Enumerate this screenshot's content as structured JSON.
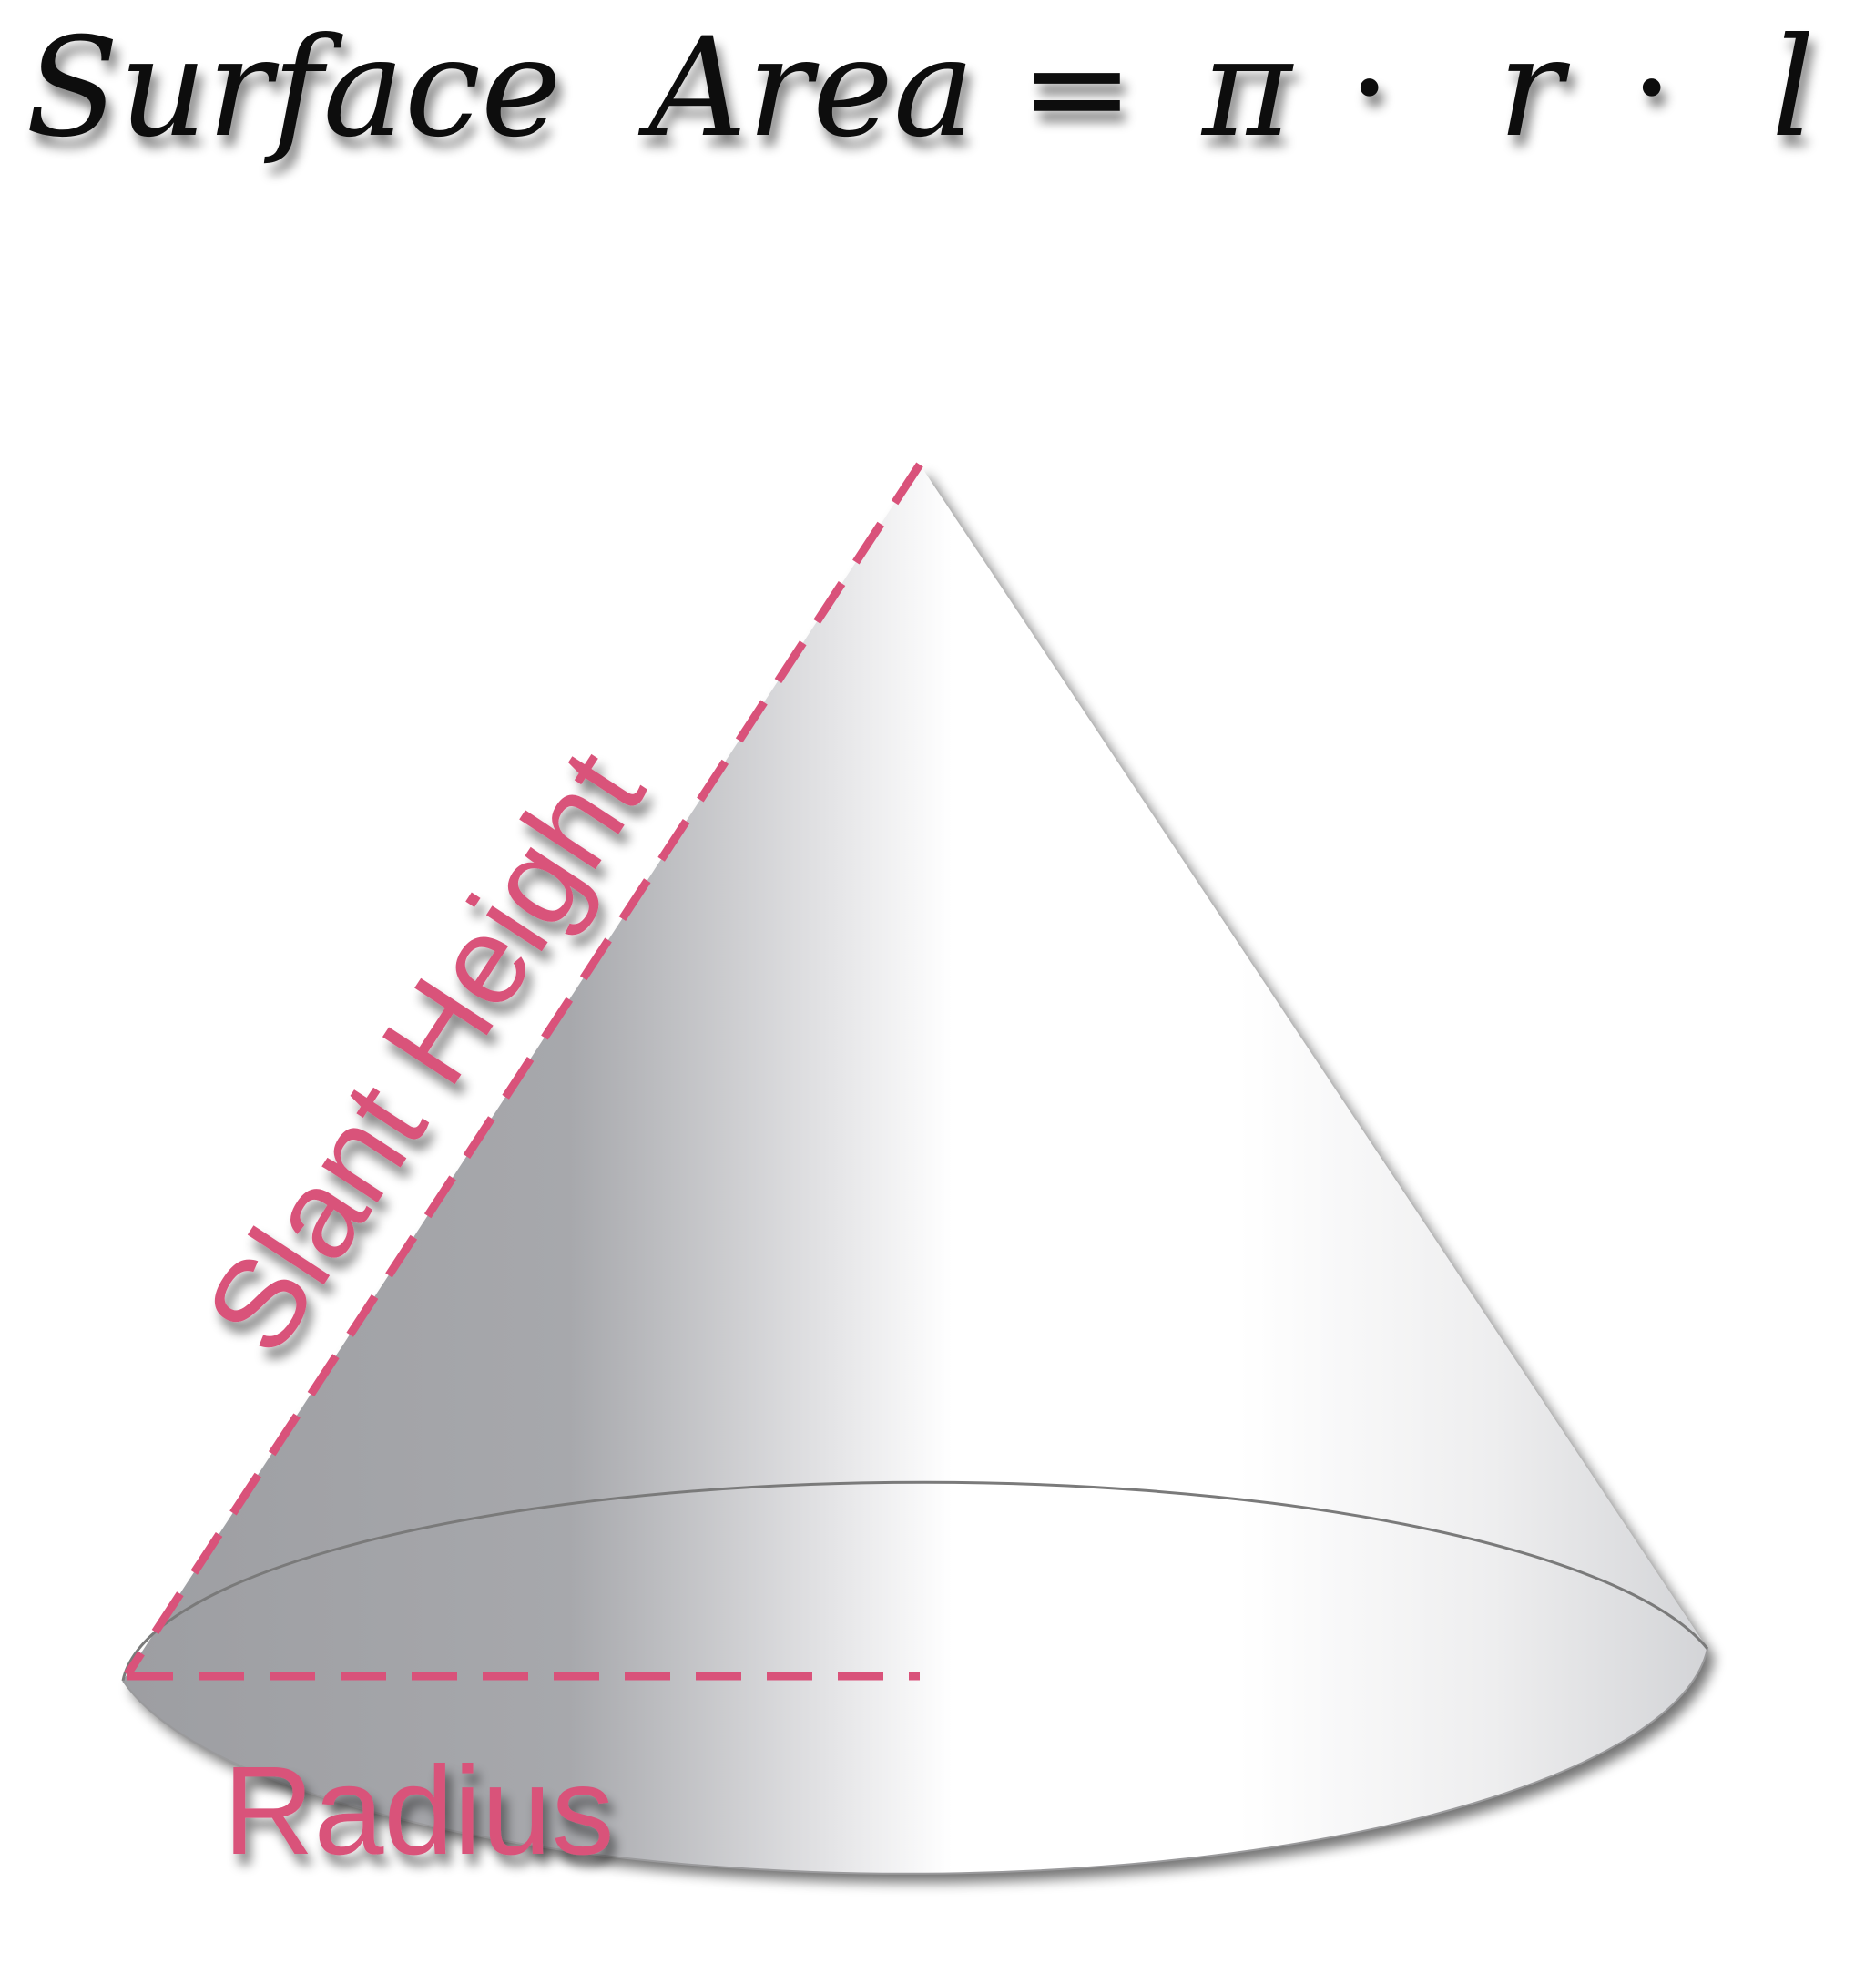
{
  "formula": {
    "lhs": "Surface  Area",
    "equals": "=",
    "pi": "π",
    "dot1": "·",
    "r": "r",
    "dot2": "·",
    "l": "l"
  },
  "labels": {
    "slant_height": "Slant Height",
    "radius": "Radius"
  },
  "colors": {
    "accent": "#d9527a",
    "formula_text": "#111111",
    "cone_dark": "#8e8f93",
    "cone_light": "#ffffff",
    "base_outline": "#7a7a7a"
  }
}
